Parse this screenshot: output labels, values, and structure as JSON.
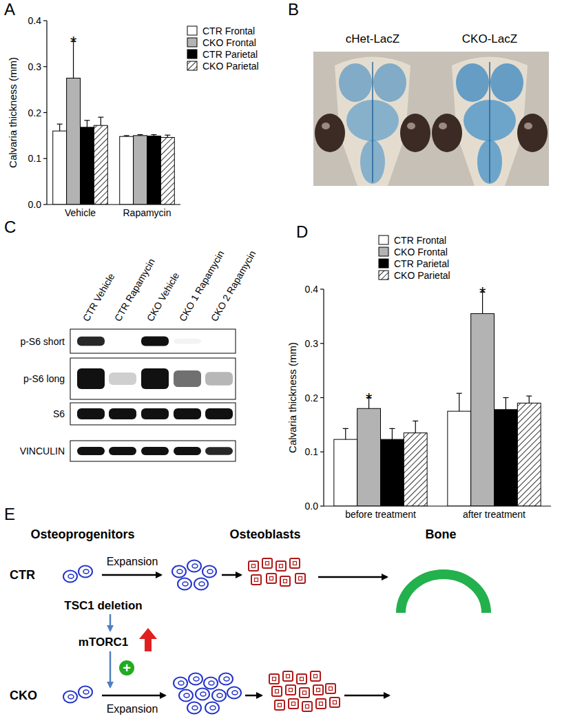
{
  "panels": [
    "A",
    "B",
    "C",
    "D",
    "E"
  ],
  "chart_data": [
    {
      "type": "bar",
      "y_label": "Calvaria thickness (mm)",
      "categories": [
        "Vehicle",
        "Rapamycin"
      ],
      "series": [
        {
          "name": "CTR Frontal",
          "color": "#ffffff",
          "values": [
            0.16,
            0.148
          ],
          "errors": [
            0.015,
            0.002
          ]
        },
        {
          "name": "CKO Frontal",
          "color": "#b3b3b3",
          "values": [
            0.275,
            0.15
          ],
          "errors": [
            0.08,
            0.002
          ]
        },
        {
          "name": "CTR Parietal",
          "color": "#000000",
          "values": [
            0.168,
            0.149
          ],
          "errors": [
            0.015,
            0.003
          ]
        },
        {
          "name": "CKO Parietal",
          "color": "#ffffff",
          "line_style": "hatched",
          "values": [
            0.172,
            0.146
          ],
          "errors": [
            0.018,
            0.005
          ]
        }
      ],
      "ylim": [
        0,
        0.4
      ],
      "yticks": [
        {
          "value": 0,
          "label": "0.0"
        },
        0.1,
        0.2,
        0.3,
        0.4
      ],
      "legend": "right",
      "grid": false,
      "annotations": [
        {
          "text": "*",
          "series": "CKO Frontal",
          "category": "Vehicle"
        }
      ]
    },
    {
      "type": "bar",
      "y_label": "Calvaria thickness (mm)",
      "categories": [
        "before treatment",
        "after treatment"
      ],
      "series": [
        {
          "name": "CTR Frontal",
          "color": "#ffffff",
          "values": [
            0.123,
            0.175
          ],
          "errors": [
            0.02,
            0.033
          ]
        },
        {
          "name": "CKO Frontal",
          "color": "#b3b3b3",
          "values": [
            0.18,
            0.355
          ],
          "errors": [
            0.02,
            0.04
          ]
        },
        {
          "name": "CTR Parietal",
          "color": "#000000",
          "values": [
            0.123,
            0.178
          ],
          "errors": [
            0.02,
            0.022
          ]
        },
        {
          "name": "CKO Parietal",
          "color": "#ffffff",
          "line_style": "hatched",
          "values": [
            0.135,
            0.19
          ],
          "errors": [
            0.022,
            0.013
          ]
        }
      ],
      "ylim": [
        0,
        0.4
      ],
      "yticks": [
        {
          "value": 0,
          "label": "0.0"
        },
        0.1,
        0.2,
        0.3,
        0.4
      ],
      "legend": "top",
      "grid": false,
      "annotations": [
        {
          "text": "*",
          "series": "CKO Frontal",
          "category": "before treatment"
        },
        {
          "text": "*",
          "series": "CKO Frontal",
          "category": "after treatment"
        }
      ]
    }
  ],
  "photos": [
    "cHet-LacZ",
    "CKO-LacZ"
  ],
  "blot": {
    "lanes": [
      "CTR Vehicle",
      "CTR Rapamycin",
      "CKO Vehicle",
      "CKO 1 Rapamycin",
      "CKO 2 Rapamycin"
    ],
    "rows": [
      {
        "label": "p-S6 short",
        "intensity": [
          0.9,
          0,
          1,
          0.05,
          0
        ]
      },
      {
        "label": "p-S6 long",
        "intensity": [
          1,
          0.2,
          1,
          0.6,
          0.3
        ]
      },
      {
        "label": "S6",
        "intensity": [
          1,
          1,
          1,
          1,
          1
        ]
      },
      {
        "label": "VINCULIN",
        "intensity": [
          1,
          1,
          1,
          1,
          0.9
        ]
      }
    ]
  },
  "diagram": {
    "headers": [
      "Osteoprogenitors",
      "Osteoblasts",
      "Bone"
    ],
    "rows": [
      {
        "label": "CTR",
        "step": "Expansion"
      },
      {
        "label": "CKO",
        "step": "Expansion"
      }
    ],
    "mechanism": [
      "TSC1 deletion",
      "mTORC1"
    ],
    "sign": "+"
  }
}
